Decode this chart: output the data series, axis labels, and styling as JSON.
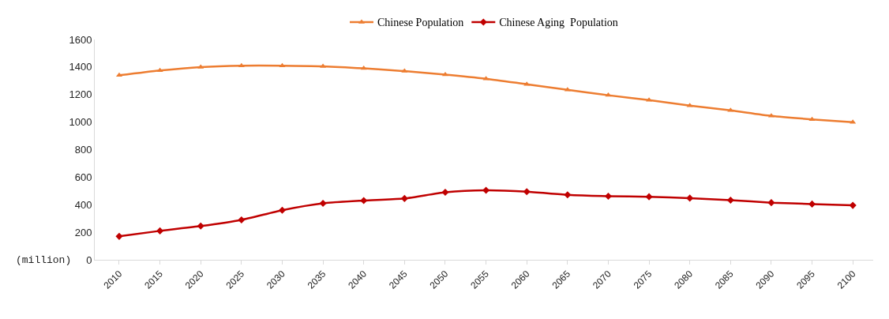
{
  "chart_data": {
    "type": "line",
    "ylabel": "(million)",
    "categories": [
      "2010",
      "2015",
      "2020",
      "2025",
      "2030",
      "2035",
      "2040",
      "2045",
      "2050",
      "2055",
      "2060",
      "2065",
      "2070",
      "2075",
      "2080",
      "2085",
      "2090",
      "2095",
      "2100"
    ],
    "series": [
      {
        "name": "Chinese Population",
        "color": "#ed7d31",
        "marker": "triangle",
        "values": [
          1340,
          1375,
          1400,
          1410,
          1410,
          1405,
          1390,
          1370,
          1345,
          1315,
          1275,
          1235,
          1195,
          1160,
          1120,
          1085,
          1045,
          1020,
          1000
        ]
      },
      {
        "name": "Chinese Aging  Population",
        "color": "#c00000",
        "marker": "diamond",
        "values": [
          170,
          210,
          245,
          290,
          360,
          410,
          430,
          445,
          490,
          505,
          495,
          472,
          462,
          458,
          448,
          433,
          415,
          405,
          395
        ]
      }
    ],
    "ylim": [
      0,
      1600
    ],
    "yticks": [
      0,
      200,
      400,
      600,
      800,
      1000,
      1200,
      1400,
      1600
    ],
    "grid": false,
    "legend": "top"
  }
}
